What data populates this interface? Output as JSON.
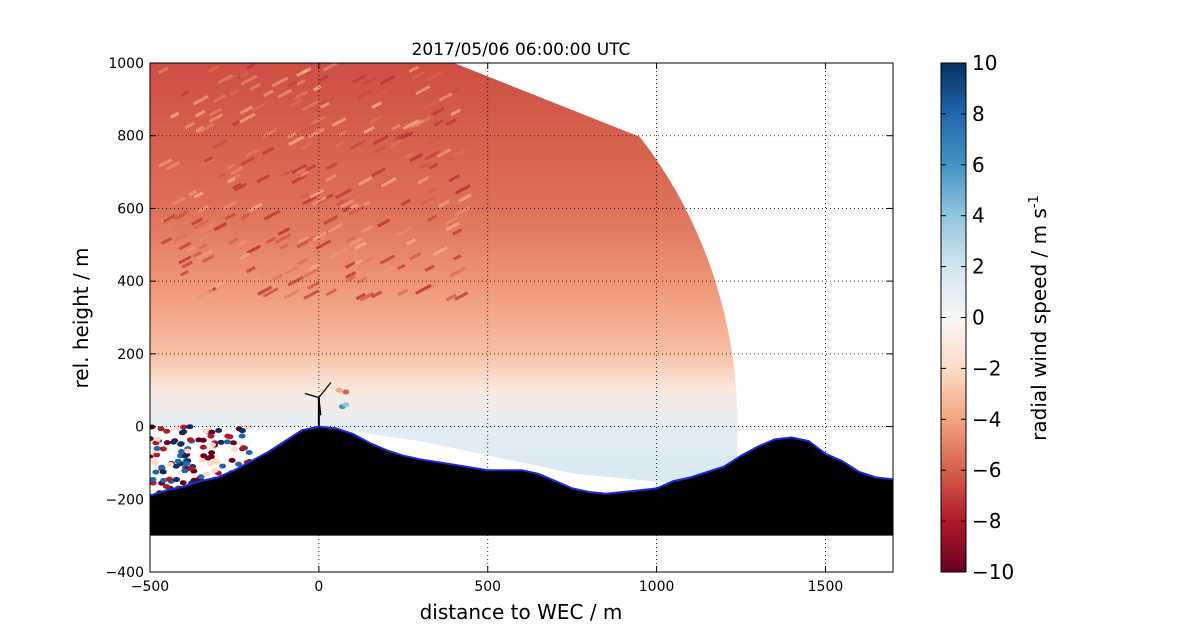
{
  "chart_data": {
    "type": "heatmap",
    "title": "2017/05/06 06:00:00 UTC",
    "xlabel": "distance to WEC / m",
    "ylabel": "rel. height / m",
    "xlim": [
      -500,
      1700
    ],
    "ylim": [
      -400,
      1000
    ],
    "x_ticks": [
      "-500",
      "0",
      "500",
      "1000",
      "1500"
    ],
    "y_ticks": [
      "-400",
      "-200",
      "0",
      "200",
      "400",
      "600",
      "800",
      "1000"
    ],
    "grid": true,
    "colorbar": {
      "label": "radial wind speed / m s",
      "label_exponent": "-1",
      "range": [
        -10,
        10
      ],
      "ticks": [
        "-10",
        "-8",
        "-6",
        "-4",
        "-2",
        "0",
        "2",
        "4",
        "6",
        "8",
        "10"
      ],
      "colormap": [
        "#67001f",
        "#b2182b",
        "#d6604d",
        "#f4a582",
        "#fddbc7",
        "#f7f7f7",
        "#d1e5f0",
        "#92c5de",
        "#4393c3",
        "#2166ac",
        "#053061"
      ]
    },
    "scan_sector": {
      "origin": [
        0,
        0
      ],
      "max_range_m": 1240,
      "elevation_range_deg": [
        -8,
        90
      ],
      "velocity_by_height": [
        {
          "height": 1000,
          "value": -6.5
        },
        {
          "height": 800,
          "value": -6.0
        },
        {
          "height": 600,
          "value": -5.5
        },
        {
          "height": 400,
          "value": -4.5
        },
        {
          "height": 200,
          "value": -3.0
        },
        {
          "height": 100,
          "value": -1.0
        },
        {
          "height": 0,
          "value": 1.0
        },
        {
          "height": -100,
          "value": 1.5
        }
      ]
    },
    "terrain_profile": {
      "x": [
        -500,
        -450,
        -400,
        -350,
        -300,
        -250,
        -200,
        -150,
        -100,
        -50,
        0,
        50,
        100,
        150,
        200,
        250,
        300,
        400,
        500,
        600,
        650,
        700,
        750,
        800,
        850,
        900,
        1000,
        1050,
        1100,
        1150,
        1200,
        1250,
        1300,
        1350,
        1400,
        1450,
        1500,
        1550,
        1600,
        1650,
        1700
      ],
      "height": [
        -190,
        -175,
        -165,
        -150,
        -140,
        -120,
        -95,
        -70,
        -40,
        -10,
        0,
        -5,
        -20,
        -45,
        -65,
        -80,
        -90,
        -105,
        -120,
        -120,
        -130,
        -150,
        -170,
        -180,
        -185,
        -180,
        -170,
        -150,
        -140,
        -125,
        -110,
        -80,
        -55,
        -35,
        -30,
        -40,
        -75,
        -95,
        -125,
        -140,
        -145
      ],
      "base": -300,
      "fill_color": "#000000",
      "edge_color": "#1a2ad8"
    },
    "turbine": {
      "x": 0,
      "hub_height": 80
    },
    "near_surface_points": {
      "x_range": [
        -500,
        -200
      ],
      "height_range": [
        -200,
        0
      ],
      "note_colors": [
        "#67001f",
        "#053061",
        "#2166ac",
        "#fddbc7",
        "#b2182b"
      ]
    }
  }
}
